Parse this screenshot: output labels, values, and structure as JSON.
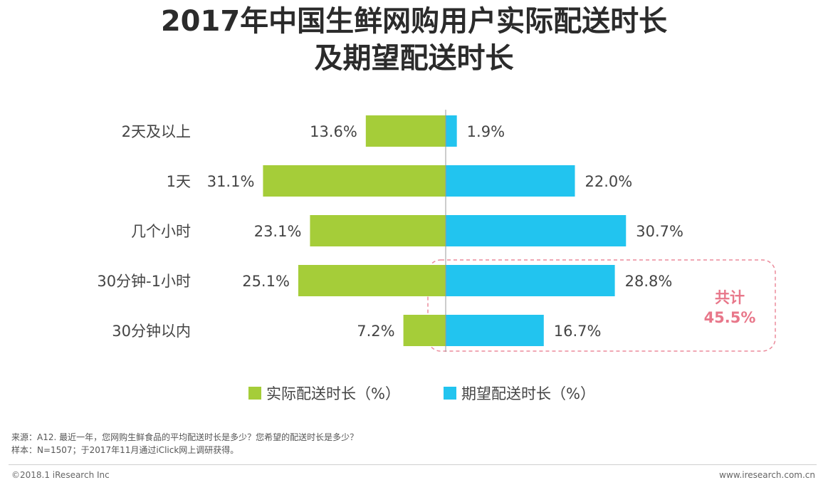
{
  "title_lines": [
    "2017年中国生鲜网购用户实际配送时长",
    "及期望配送时长"
  ],
  "chart_data": {
    "type": "bar",
    "orientation": "horizontal-butterfly",
    "categories": [
      "2天及以上",
      "1天",
      "几个小时",
      "30分钟-1小时",
      "30分钟以内"
    ],
    "series": [
      {
        "name": "实际配送时长（%）",
        "values": [
          13.6,
          31.1,
          23.1,
          25.1,
          7.2
        ],
        "labels": [
          "13.6%",
          "31.1%",
          "23.1%",
          "25.1%",
          "7.2%"
        ],
        "color": "#a5cd39",
        "direction": "left"
      },
      {
        "name": "期望配送时长（%）",
        "values": [
          1.9,
          22.0,
          30.7,
          28.8,
          16.7
        ],
        "labels": [
          "1.9%",
          "22.0%",
          "30.7%",
          "28.8%",
          "16.7%"
        ],
        "color": "#22c4ef",
        "direction": "right"
      }
    ],
    "annotation": {
      "line1": "共计",
      "line2": "45.5%",
      "covers_categories": [
        "30分钟-1小时",
        "30分钟以内"
      ],
      "color": "#e8778a"
    },
    "legend_position": "bottom-center"
  },
  "footnotes": {
    "source": "来源：A12. 最近一年，您网购生鲜食品的平均配送时长是多少？您希望的配送时长是多少？",
    "sample": "样本：N=1507；于2017年11月通过iClick网上调研获得。"
  },
  "footer": {
    "copyright": "©2018.1 iResearch Inc",
    "website": "www.iresearch.com.cn"
  },
  "colors": {
    "title": "#2b2b2b",
    "text": "#444444",
    "axis": "#9a9a9a"
  }
}
